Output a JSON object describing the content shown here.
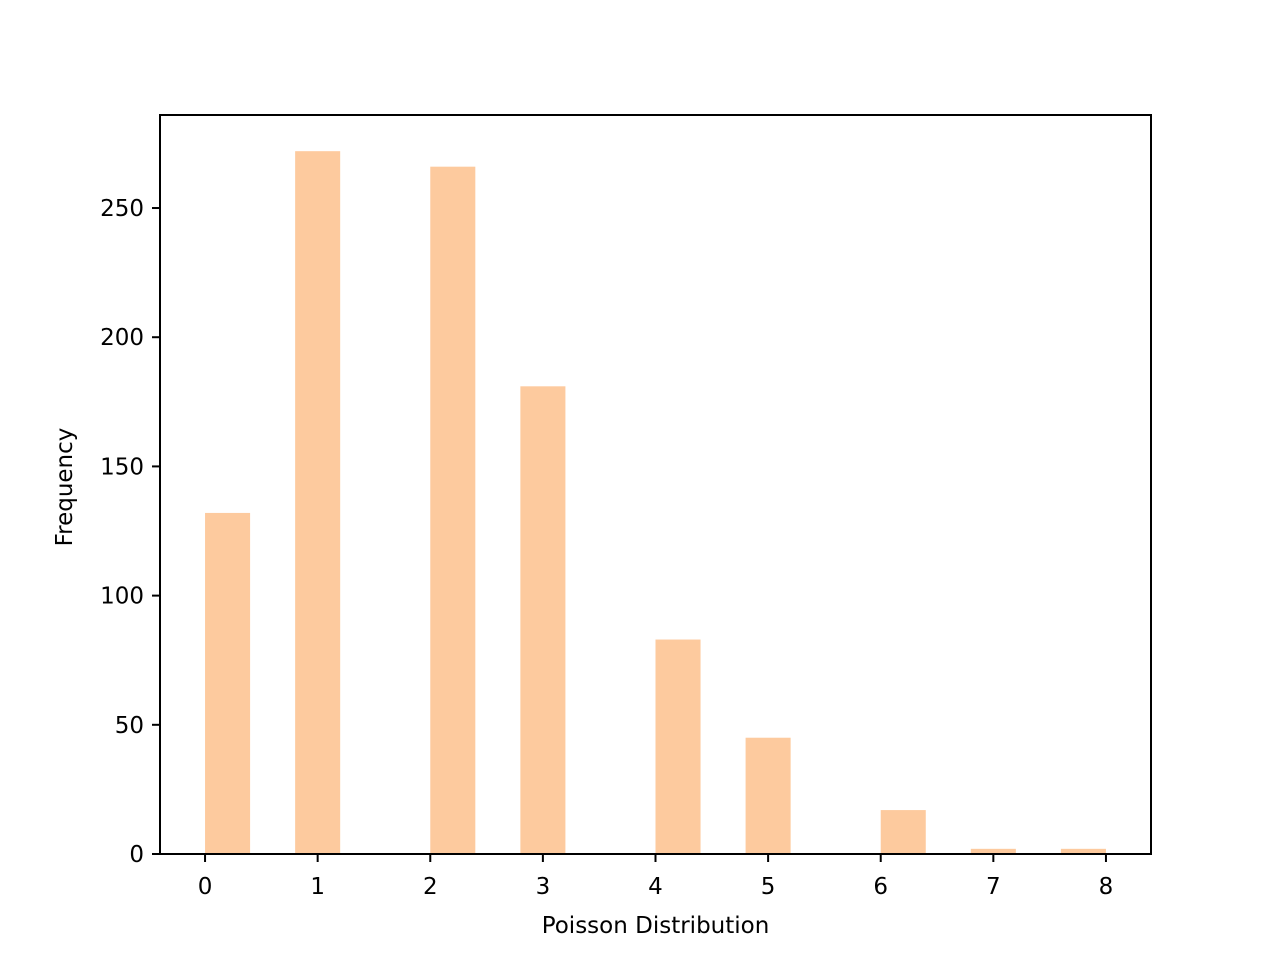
{
  "chart_data": {
    "type": "bar",
    "title": "",
    "xlabel": "Poisson Distribution",
    "ylabel": "Frequency",
    "bar_color": "#fdca9e",
    "bin_width": 0.4,
    "bins": [
      {
        "start": 0.0,
        "end": 0.4,
        "value": 132
      },
      {
        "start": 0.8,
        "end": 1.2,
        "value": 272
      },
      {
        "start": 2.0,
        "end": 2.4,
        "value": 266
      },
      {
        "start": 2.8,
        "end": 3.2,
        "value": 181
      },
      {
        "start": 4.0,
        "end": 4.4,
        "value": 83
      },
      {
        "start": 4.8,
        "end": 5.2,
        "value": 45
      },
      {
        "start": 6.0,
        "end": 6.4,
        "value": 17
      },
      {
        "start": 6.8,
        "end": 7.2,
        "value": 2
      },
      {
        "start": 7.6,
        "end": 8.0,
        "value": 2
      }
    ],
    "categories": [
      "0",
      "1",
      "2",
      "3",
      "4",
      "5",
      "6",
      "7",
      "8"
    ],
    "values": [
      132,
      272,
      266,
      181,
      83,
      45,
      17,
      2,
      2
    ],
    "xlim": [
      -0.4,
      8.4
    ],
    "ylim": [
      0,
      286
    ],
    "xticks": [
      0,
      1,
      2,
      3,
      4,
      5,
      6,
      7,
      8
    ],
    "yticks": [
      0,
      50,
      100,
      150,
      200,
      250
    ],
    "grid": false,
    "legend": null
  }
}
